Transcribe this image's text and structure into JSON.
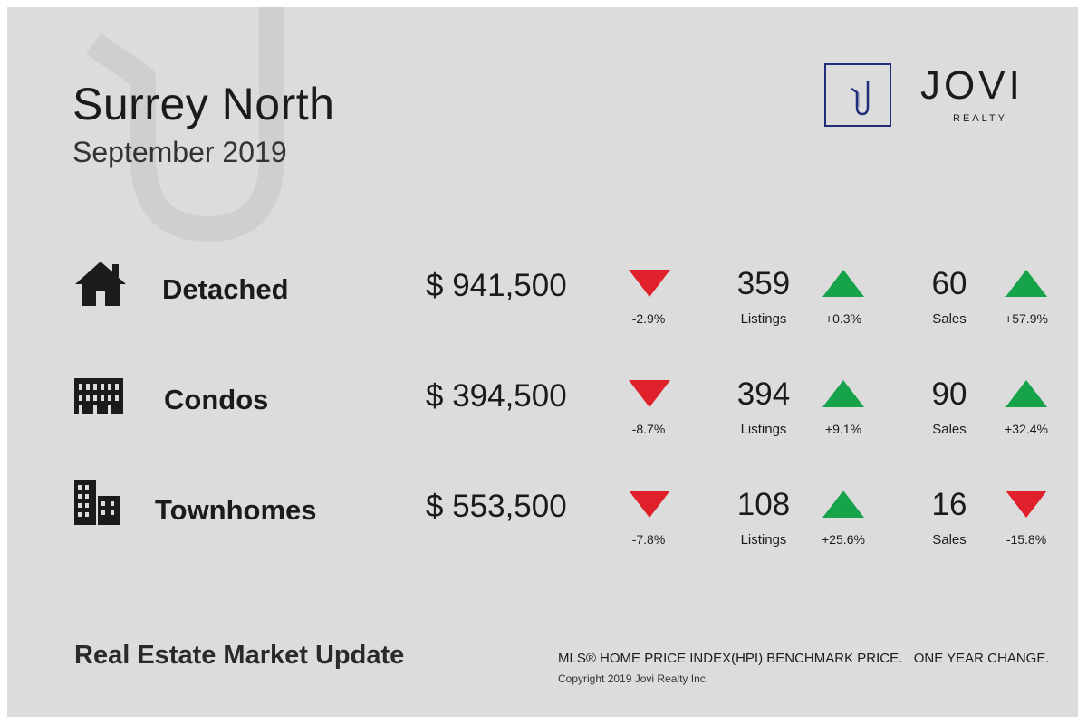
{
  "header": {
    "title": "Surrey North",
    "subtitle": "September 2019"
  },
  "brand": {
    "name": "JOVI",
    "sub": "REALTY",
    "logo_letter": "J",
    "accent": "#1f2d7a"
  },
  "colors": {
    "up": "#16a34a",
    "down": "#e0202a"
  },
  "rows": [
    {
      "icon": "house-icon",
      "label": "Detached",
      "price": "$ 941,500",
      "price_change": "-2.9%",
      "price_dir": "down",
      "listings": "359",
      "listings_label": "Listings",
      "listings_change": "+0.3%",
      "listings_dir": "up",
      "sales": "60",
      "sales_label": "Sales",
      "sales_change": "+57.9%",
      "sales_dir": "up"
    },
    {
      "icon": "condo-building-icon",
      "label": "Condos",
      "price": "$ 394,500",
      "price_change": "-8.7%",
      "price_dir": "down",
      "listings": "394",
      "listings_label": "Listings",
      "listings_change": "+9.1%",
      "listings_dir": "up",
      "sales": "90",
      "sales_label": "Sales",
      "sales_change": "+32.4%",
      "sales_dir": "up"
    },
    {
      "icon": "townhome-building-icon",
      "label": "Townhomes",
      "price": "$ 553,500",
      "price_change": "-7.8%",
      "price_dir": "down",
      "listings": "108",
      "listings_label": "Listings",
      "listings_change": "+25.6%",
      "listings_dir": "up",
      "sales": "16",
      "sales_label": "Sales",
      "sales_change": "-15.8%",
      "sales_dir": "down"
    }
  ],
  "footer": {
    "title": "Real Estate Market Update",
    "note": "MLS® HOME PRICE INDEX(HPI) BENCHMARK PRICE.   ONE YEAR CHANGE.",
    "copyright": "Copyright 2019 Jovi Realty Inc."
  }
}
